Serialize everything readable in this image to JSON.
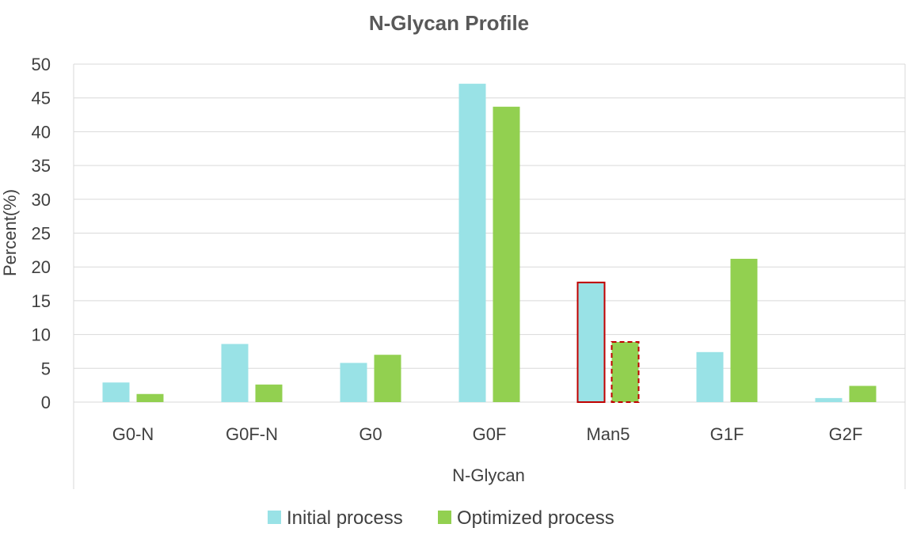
{
  "chart_data": {
    "type": "bar",
    "title": "N-Glycan Profile",
    "xlabel": "N-Glycan",
    "ylabel": "Percent(%)",
    "ylim": [
      0,
      50
    ],
    "yticks": [
      0,
      5,
      10,
      15,
      20,
      25,
      30,
      35,
      40,
      45,
      50
    ],
    "grid": true,
    "legend_position": "bottom",
    "categories": [
      "G0-N",
      "G0F-N",
      "G0",
      "G0F",
      "Man5",
      "G1F",
      "G2F"
    ],
    "series": [
      {
        "name": "Initial process",
        "color": "#99e2e6",
        "values": [
          2.9,
          8.6,
          5.8,
          47.1,
          17.7,
          7.4,
          0.6
        ]
      },
      {
        "name": "Optimized process",
        "color": "#92d050",
        "values": [
          1.2,
          2.6,
          7.0,
          43.7,
          8.9,
          21.2,
          2.4
        ]
      }
    ],
    "highlight": {
      "category": "Man5",
      "outline_color": "#c00000"
    }
  }
}
